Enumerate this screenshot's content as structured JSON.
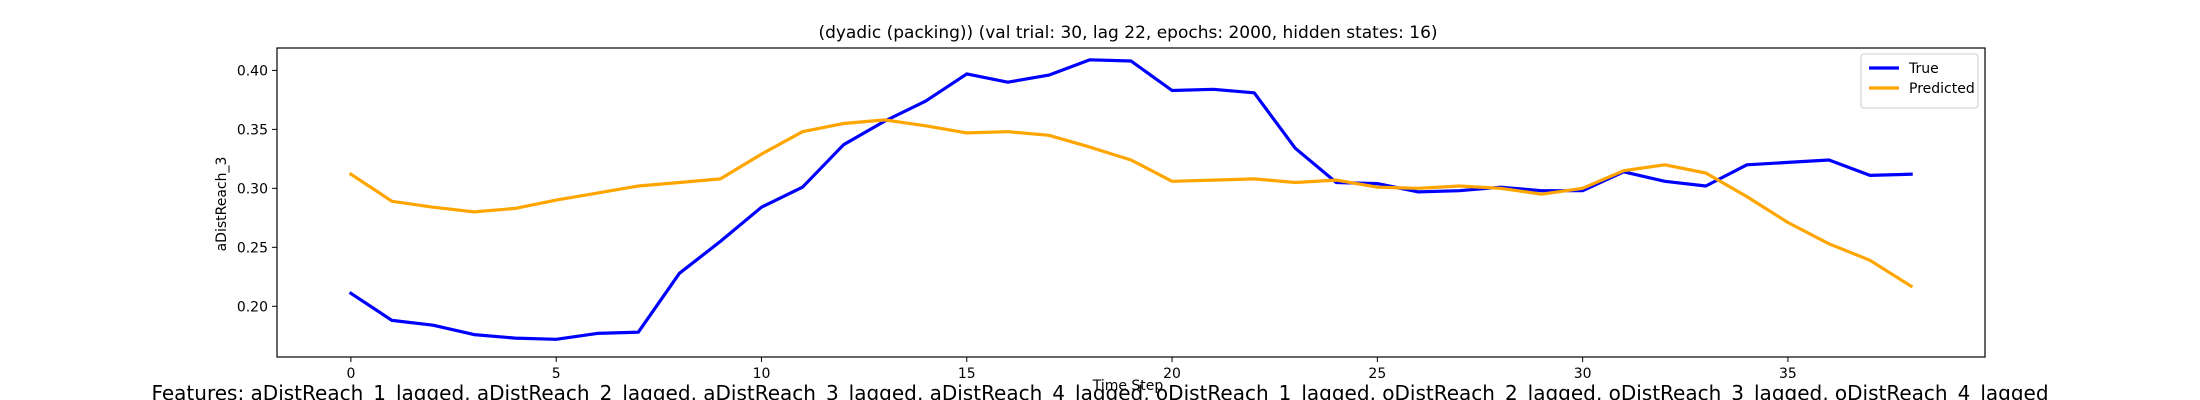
{
  "chart_data": {
    "type": "line",
    "title": "(dyadic (packing)) (val trial: 30, lag 22, epochs: 2000, hidden states: 16)",
    "xlabel": "Time Step",
    "ylabel": "aDistReach_3",
    "xlim": [
      -1.8,
      39.8
    ],
    "ylim": [
      0.157,
      0.419
    ],
    "xticks": [
      0,
      5,
      10,
      15,
      20,
      25,
      30,
      35
    ],
    "yticks": [
      0.2,
      0.25,
      0.3,
      0.35,
      0.4
    ],
    "ytick_labels": [
      "0.20",
      "0.25",
      "0.30",
      "0.35",
      "0.40"
    ],
    "grid": false,
    "legend_position": "top-right",
    "x": [
      0,
      1,
      2,
      3,
      4,
      5,
      6,
      7,
      8,
      9,
      10,
      11,
      12,
      13,
      14,
      15,
      16,
      17,
      18,
      19,
      20,
      21,
      22,
      23,
      24,
      25,
      26,
      27,
      28,
      29,
      30,
      31,
      32,
      33,
      34,
      35,
      36,
      37,
      38
    ],
    "series": [
      {
        "name": "True",
        "color": "#0000ff",
        "values": [
          0.211,
          0.188,
          0.184,
          0.176,
          0.173,
          0.172,
          0.177,
          0.178,
          0.228,
          0.255,
          0.284,
          0.301,
          0.337,
          0.357,
          0.374,
          0.397,
          0.39,
          0.396,
          0.409,
          0.408,
          0.383,
          0.384,
          0.381,
          0.334,
          0.305,
          0.304,
          0.297,
          0.298,
          0.301,
          0.298,
          0.298,
          0.314,
          0.306,
          0.302,
          0.32,
          0.322,
          0.324,
          0.311,
          0.312
        ]
      },
      {
        "name": "Predicted",
        "color": "#ffa500",
        "values": [
          0.312,
          0.289,
          0.284,
          0.28,
          0.283,
          0.29,
          0.296,
          0.302,
          0.305,
          0.308,
          0.329,
          0.348,
          0.355,
          0.358,
          0.353,
          0.347,
          0.348,
          0.345,
          0.335,
          0.324,
          0.306,
          0.307,
          0.308,
          0.305,
          0.307,
          0.301,
          0.3,
          0.302,
          0.3,
          0.295,
          0.3,
          0.315,
          0.32,
          0.313,
          0.293,
          0.271,
          0.253,
          0.239,
          0.217
        ]
      }
    ],
    "footer": "Features: aDistReach_1_lagged, aDistReach_2_lagged, aDistReach_3_lagged, aDistReach_4_lagged, oDistReach_1_lagged, oDistReach_2_lagged, oDistReach_3_lagged, oDistReach_4_lagged"
  }
}
